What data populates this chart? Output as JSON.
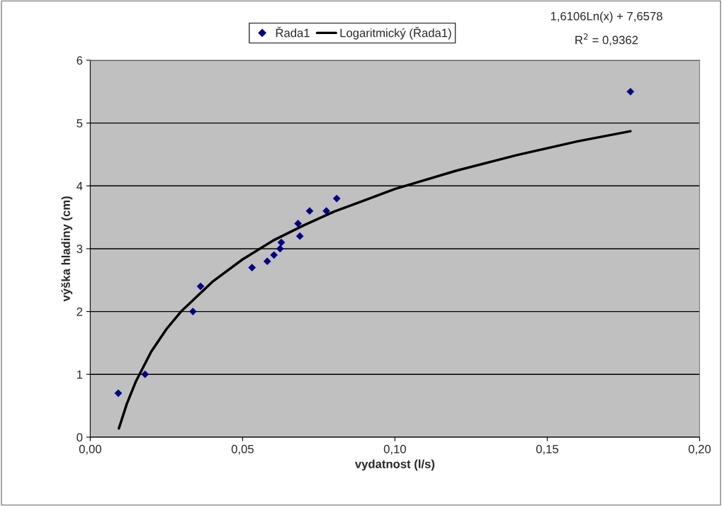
{
  "chart_data": {
    "type": "scatter",
    "xlabel": "vydatnost (l/s)",
    "ylabel": "výška hladiny (cm)",
    "xlim": [
      0,
      0.2
    ],
    "xticks": [
      {
        "value": 0,
        "label": "0,00"
      },
      {
        "value": 0.05,
        "label": "0,05"
      },
      {
        "value": 0.1,
        "label": "0,10"
      },
      {
        "value": 0.15,
        "label": "0,15"
      },
      {
        "value": 0.2,
        "label": "0,20"
      }
    ],
    "ylim": [
      0,
      6
    ],
    "yticks": [
      0,
      1,
      2,
      3,
      4,
      5,
      6
    ],
    "grid": "y",
    "legend": "top",
    "marker": "diamond",
    "series": [
      {
        "name": "Řada1",
        "color": "#000080",
        "x": [
          0.0092,
          0.018,
          0.0337,
          0.0362,
          0.0531,
          0.0581,
          0.0603,
          0.0623,
          0.0627,
          0.0682,
          0.0688,
          0.072,
          0.0775,
          0.0809,
          0.1773
        ],
        "values": [
          0.7,
          1.0,
          2.0,
          2.4,
          2.7,
          2.8,
          2.9,
          3.0,
          3.1,
          3.4,
          3.2,
          3.6,
          3.6,
          3.8,
          5.5
        ]
      },
      {
        "name": "Logaritmický (Řada1)",
        "type": "line",
        "color": "#000000",
        "marker": "none",
        "x": [
          0.0094,
          0.012,
          0.015,
          0.02,
          0.025,
          0.03,
          0.04,
          0.05,
          0.06,
          0.07,
          0.08,
          0.1,
          0.12,
          0.14,
          0.16,
          0.1773
        ],
        "values": [
          0.14,
          0.53,
          0.89,
          1.36,
          1.72,
          2.01,
          2.47,
          2.83,
          3.13,
          3.37,
          3.59,
          3.95,
          4.24,
          4.49,
          4.71,
          4.87
        ]
      }
    ],
    "annotations": [
      "1,6106Ln(x) + 7,6578",
      "R$^{2}$ = 0,9362"
    ]
  }
}
